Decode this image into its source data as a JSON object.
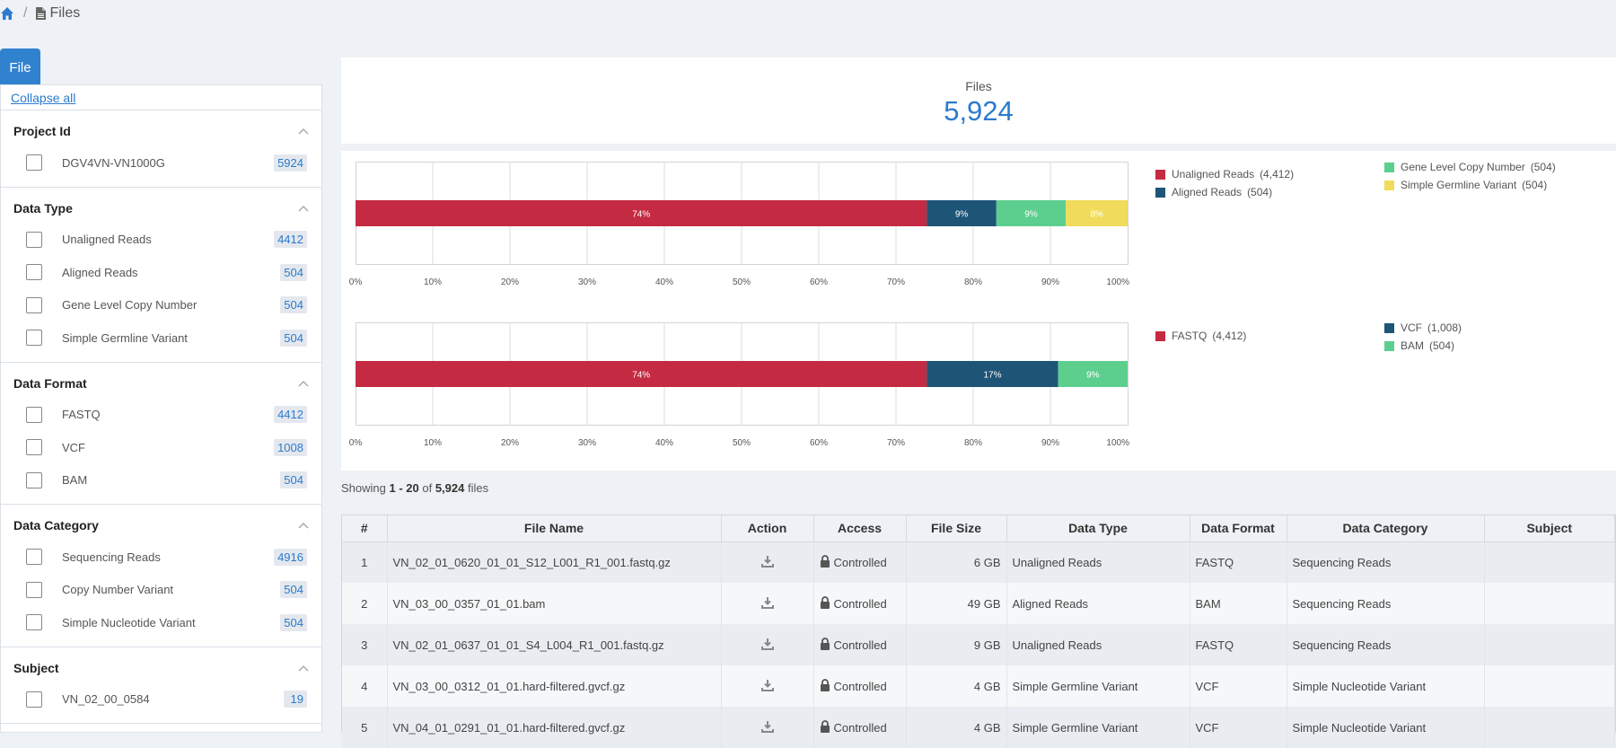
{
  "breadcrumb": {
    "home_icon": "home-icon",
    "file_icon": "file-icon",
    "separator": "/",
    "current": "Files"
  },
  "sidebar": {
    "tab_label": "File",
    "collapse_all": "Collapse all",
    "facets": [
      {
        "title": "Project Id",
        "items": [
          {
            "label": "DGV4VN-VN1000G",
            "count": "5924"
          }
        ]
      },
      {
        "title": "Data Type",
        "items": [
          {
            "label": "Unaligned Reads",
            "count": "4412"
          },
          {
            "label": "Aligned Reads",
            "count": "504"
          },
          {
            "label": "Gene Level Copy Number",
            "count": "504"
          },
          {
            "label": "Simple Germline Variant",
            "count": "504"
          }
        ]
      },
      {
        "title": "Data Format",
        "items": [
          {
            "label": "FASTQ",
            "count": "4412"
          },
          {
            "label": "VCF",
            "count": "1008"
          },
          {
            "label": "BAM",
            "count": "504"
          }
        ]
      },
      {
        "title": "Data Category",
        "items": [
          {
            "label": "Sequencing Reads",
            "count": "4916"
          },
          {
            "label": "Copy Number Variant",
            "count": "504"
          },
          {
            "label": "Simple Nucleotide Variant",
            "count": "504"
          }
        ]
      },
      {
        "title": "Subject",
        "items": [
          {
            "label": "VN_02_00_0584",
            "count": "19"
          }
        ]
      }
    ]
  },
  "summary": {
    "label": "Files",
    "value": "5,924"
  },
  "colors": {
    "red": "#c42b42",
    "navy": "#1e5577",
    "green": "#5ccf8e",
    "yellow": "#f0dc5a"
  },
  "chart_data": [
    {
      "type": "bar",
      "orientation": "horizontal-stacked",
      "xlim": [
        0,
        100
      ],
      "ticks": [
        "0%",
        "10%",
        "20%",
        "30%",
        "40%",
        "50%",
        "60%",
        "70%",
        "80%",
        "90%",
        "100%"
      ],
      "series": [
        {
          "name": "Unaligned Reads",
          "count": "4,412",
          "value": 74,
          "label": "74%",
          "color": "#c42b42"
        },
        {
          "name": "Aligned Reads",
          "count": "504",
          "value": 9,
          "label": "9%",
          "color": "#1e5577"
        },
        {
          "name": "Gene Level Copy Number",
          "count": "504",
          "value": 9,
          "label": "9%",
          "color": "#5ccf8e"
        },
        {
          "name": "Simple Germline Variant",
          "count": "504",
          "value": 8,
          "label": "8%",
          "color": "#f0dc5a"
        }
      ]
    },
    {
      "type": "bar",
      "orientation": "horizontal-stacked",
      "xlim": [
        0,
        100
      ],
      "ticks": [
        "0%",
        "10%",
        "20%",
        "30%",
        "40%",
        "50%",
        "60%",
        "70%",
        "80%",
        "90%",
        "100%"
      ],
      "series": [
        {
          "name": "FASTQ",
          "count": "4,412",
          "value": 74,
          "label": "74%",
          "color": "#c42b42"
        },
        {
          "name": "VCF",
          "count": "1,008",
          "value": 17,
          "label": "17%",
          "color": "#1e5577"
        },
        {
          "name": "BAM",
          "count": "504",
          "value": 9,
          "label": "9%",
          "color": "#5ccf8e"
        }
      ]
    }
  ],
  "showing": {
    "prefix": "Showing ",
    "range": "1 - 20",
    "of": " of ",
    "total": "5,924",
    "suffix": " files"
  },
  "table": {
    "columns": [
      "#",
      "File Name",
      "Action",
      "Access",
      "File Size",
      "Data Type",
      "Data Format",
      "Data Category",
      "Subject"
    ],
    "rows": [
      {
        "n": "1",
        "file": "VN_02_01_0620_01_01_S12_L001_R1_001.fastq.gz",
        "access": "Controlled",
        "size": "6 GB",
        "type": "Unaligned Reads",
        "format": "FASTQ",
        "category": "Sequencing Reads",
        "subject": ""
      },
      {
        "n": "2",
        "file": "VN_03_00_0357_01_01.bam",
        "access": "Controlled",
        "size": "49 GB",
        "type": "Aligned Reads",
        "format": "BAM",
        "category": "Sequencing Reads",
        "subject": ""
      },
      {
        "n": "3",
        "file": "VN_02_01_0637_01_01_S4_L004_R1_001.fastq.gz",
        "access": "Controlled",
        "size": "9 GB",
        "type": "Unaligned Reads",
        "format": "FASTQ",
        "category": "Sequencing Reads",
        "subject": ""
      },
      {
        "n": "4",
        "file": "VN_03_00_0312_01_01.hard-filtered.gvcf.gz",
        "access": "Controlled",
        "size": "4 GB",
        "type": "Simple Germline Variant",
        "format": "VCF",
        "category": "Simple Nucleotide Variant",
        "subject": ""
      },
      {
        "n": "5",
        "file": "VN_04_01_0291_01_01.hard-filtered.gvcf.gz",
        "access": "Controlled",
        "size": "4 GB",
        "type": "Simple Germline Variant",
        "format": "VCF",
        "category": "Simple Nucleotide Variant",
        "subject": ""
      }
    ]
  }
}
